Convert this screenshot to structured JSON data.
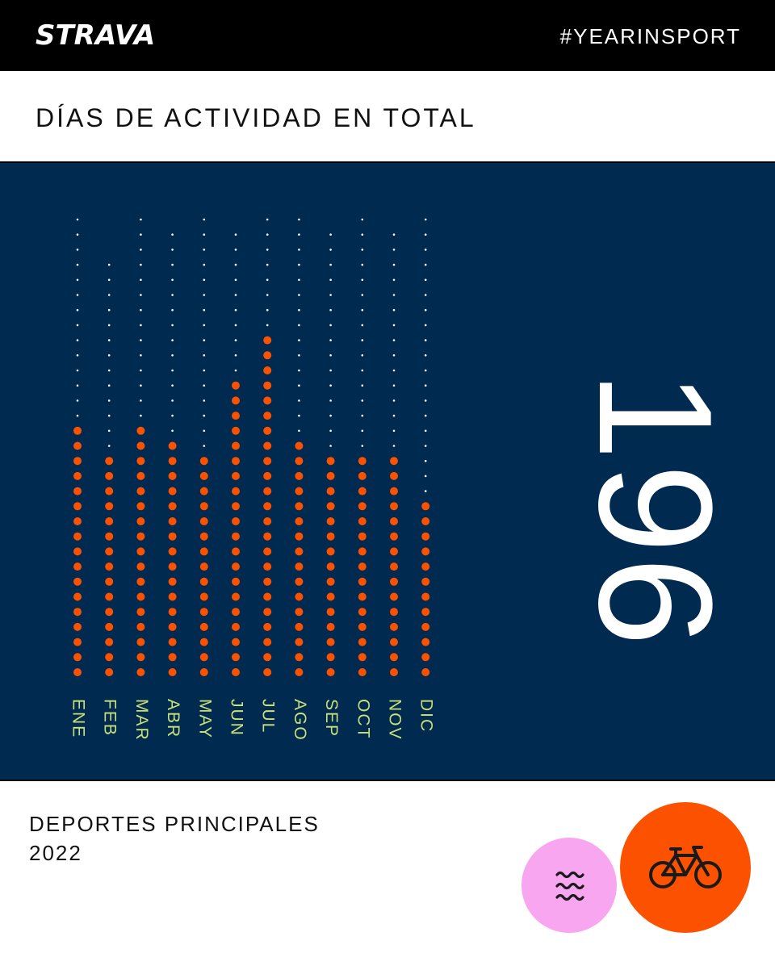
{
  "header": {
    "logo_text": "STRAVA",
    "hashtag": "#YEARINSPORT"
  },
  "section_title": "DÍAS DE ACTIVIDAD EN TOTAL",
  "total_days": "196",
  "chart_data": {
    "type": "bar",
    "categories": [
      "ENE",
      "FEB",
      "MAR",
      "ABR",
      "MAY",
      "JUN",
      "JUL",
      "AGO",
      "SEP",
      "OCT",
      "NOV",
      "DIC"
    ],
    "values": [
      17,
      15,
      17,
      16,
      15,
      20,
      23,
      16,
      15,
      15,
      15,
      12
    ],
    "max_days": [
      31,
      28,
      31,
      30,
      31,
      30,
      31,
      31,
      30,
      31,
      30,
      31
    ],
    "colors": {
      "active": "#fc5200",
      "inactive": "#ffffff",
      "labels": "#c8e07a",
      "background": "#002a4f"
    }
  },
  "sports": {
    "title": "DEPORTES PRINCIPALES",
    "year": "2022",
    "items": [
      {
        "icon": "swim-icon",
        "color": "#f7a6ef"
      },
      {
        "icon": "bike-icon",
        "color": "#fc5200"
      }
    ]
  }
}
